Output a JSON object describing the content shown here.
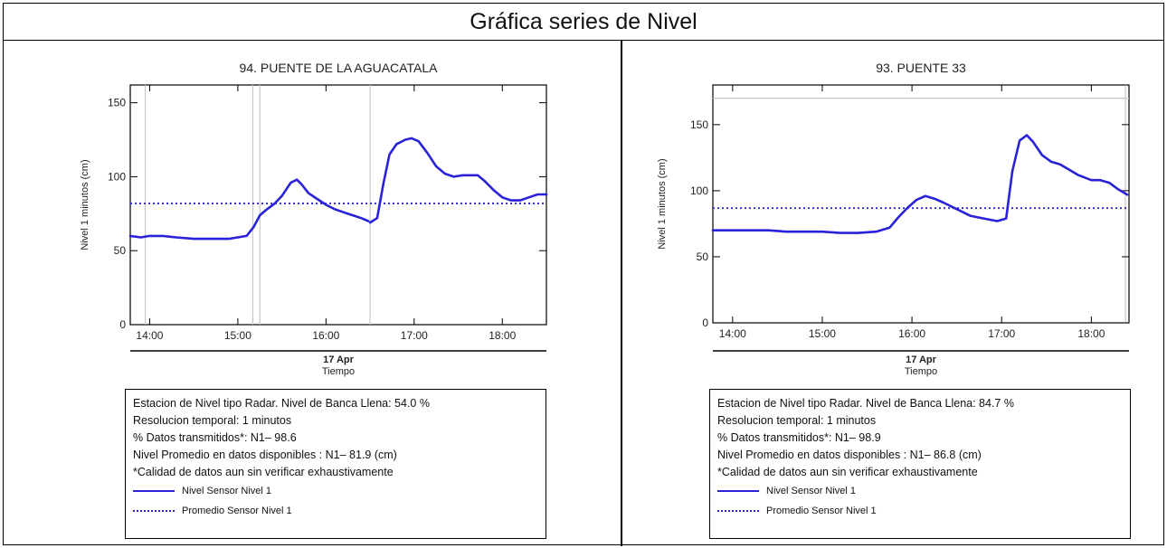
{
  "header": {
    "title": "Gráfica series de Nivel"
  },
  "legend_labels": {
    "series": "Nivel Sensor Nivel 1",
    "mean": "Promedio Sensor Nivel 1"
  },
  "colors": {
    "series": "#2a22d8",
    "mean": "#3a32e0",
    "marker": "#c8c8c8",
    "axis": "#000000"
  },
  "chart_data": [
    {
      "type": "line",
      "title": "94. PUENTE DE LA AGUACATALA",
      "ylabel": "Nivel 1 minutos (cm)",
      "xlabel": "Tiempo",
      "date_label": "17 Apr",
      "x_unit": "hours (time of day, 17 Apr)",
      "xlim": [
        13.78,
        18.5
      ],
      "ylim": [
        0,
        162
      ],
      "yticks": [
        0,
        50,
        100,
        150
      ],
      "xticks": [
        "14:00",
        "15:00",
        "16:00",
        "17:00",
        "18:00"
      ],
      "xtick_values": [
        14,
        15,
        16,
        17,
        18
      ],
      "mean_level": 81.9,
      "vertical_markers": [
        13.95,
        15.17,
        15.25,
        16.5
      ],
      "series": [
        {
          "name": "Nivel Sensor Nivel 1",
          "x": [
            13.78,
            13.9,
            14.0,
            14.15,
            14.3,
            14.5,
            14.7,
            14.9,
            15.0,
            15.1,
            15.18,
            15.25,
            15.33,
            15.42,
            15.5,
            15.6,
            15.67,
            15.72,
            15.8,
            15.9,
            16.0,
            16.1,
            16.2,
            16.3,
            16.4,
            16.48
          ],
          "values": [
            60,
            59,
            60,
            60,
            59,
            58,
            58,
            58,
            59,
            60,
            66,
            74,
            78,
            82,
            87,
            96,
            98,
            95,
            89,
            85,
            81,
            78,
            76,
            74,
            72,
            70
          ]
        },
        {
          "name": "Nivel Sensor Nivel 1",
          "x": [
            16.5,
            16.58,
            16.65,
            16.72,
            16.8,
            16.9,
            16.97,
            17.05,
            17.15,
            17.25,
            17.35,
            17.45,
            17.55,
            17.65,
            17.72,
            17.8,
            17.9,
            18.0,
            18.1,
            18.2,
            18.3,
            18.4,
            18.5
          ],
          "values": [
            69,
            72,
            95,
            115,
            122,
            125,
            126,
            124,
            116,
            107,
            102,
            100,
            101,
            101,
            101,
            97,
            91,
            86,
            84,
            84,
            86,
            88,
            88
          ]
        }
      ],
      "info": [
        "Estacion de Nivel tipo Radar. Nivel de Banca Llena: 54.0 %",
        "Resolucion temporal: 1 minutos",
        "% Datos transmitidos*: N1– 98.6",
        "Nivel Promedio en datos disponibles : N1– 81.9 (cm)",
        "*Calidad de datos aun sin verificar exhaustivamente"
      ]
    },
    {
      "type": "line",
      "title": "93. PUENTE 33",
      "ylabel": "Nivel 1 minutos (cm)",
      "xlabel": "Tiempo",
      "date_label": "17 Apr",
      "x_unit": "hours (time of day, 17 Apr)",
      "xlim": [
        13.78,
        18.42
      ],
      "ylim": [
        0,
        180
      ],
      "yticks": [
        0,
        50,
        100,
        150
      ],
      "xticks": [
        "14:00",
        "15:00",
        "16:00",
        "17:00",
        "18:00"
      ],
      "xtick_values": [
        14,
        15,
        16,
        17,
        18
      ],
      "mean_level": 86.8,
      "horizontal_markers": [
        170
      ],
      "vertical_markers": [
        18.38
      ],
      "series": [
        {
          "name": "Nivel Sensor Nivel 1",
          "x": [
            13.78,
            14.0,
            14.2,
            14.4,
            14.6,
            14.8,
            15.0,
            15.2,
            15.4,
            15.6,
            15.75,
            15.85,
            15.95,
            16.05,
            16.15,
            16.25,
            16.35,
            16.5,
            16.65,
            16.8,
            16.95,
            17.05,
            17.12,
            17.2,
            17.28,
            17.35,
            17.45,
            17.55,
            17.65,
            17.75,
            17.85,
            18.0,
            18.1,
            18.2,
            18.3,
            18.4
          ],
          "values": [
            70,
            70,
            70,
            70,
            69,
            69,
            69,
            68,
            68,
            69,
            72,
            80,
            87,
            93,
            96,
            94,
            91,
            86,
            81,
            79,
            77,
            79,
            115,
            138,
            142,
            137,
            127,
            122,
            120,
            116,
            112,
            108,
            108,
            106,
            101,
            97
          ]
        }
      ],
      "info": [
        "Estacion de Nivel tipo Radar. Nivel de Banca Llena: 84.7 %",
        "Resolucion temporal: 1 minutos",
        "% Datos transmitidos*: N1– 98.9",
        "Nivel Promedio en datos disponibles : N1– 86.8 (cm)",
        "*Calidad de datos aun sin verificar exhaustivamente"
      ]
    }
  ]
}
